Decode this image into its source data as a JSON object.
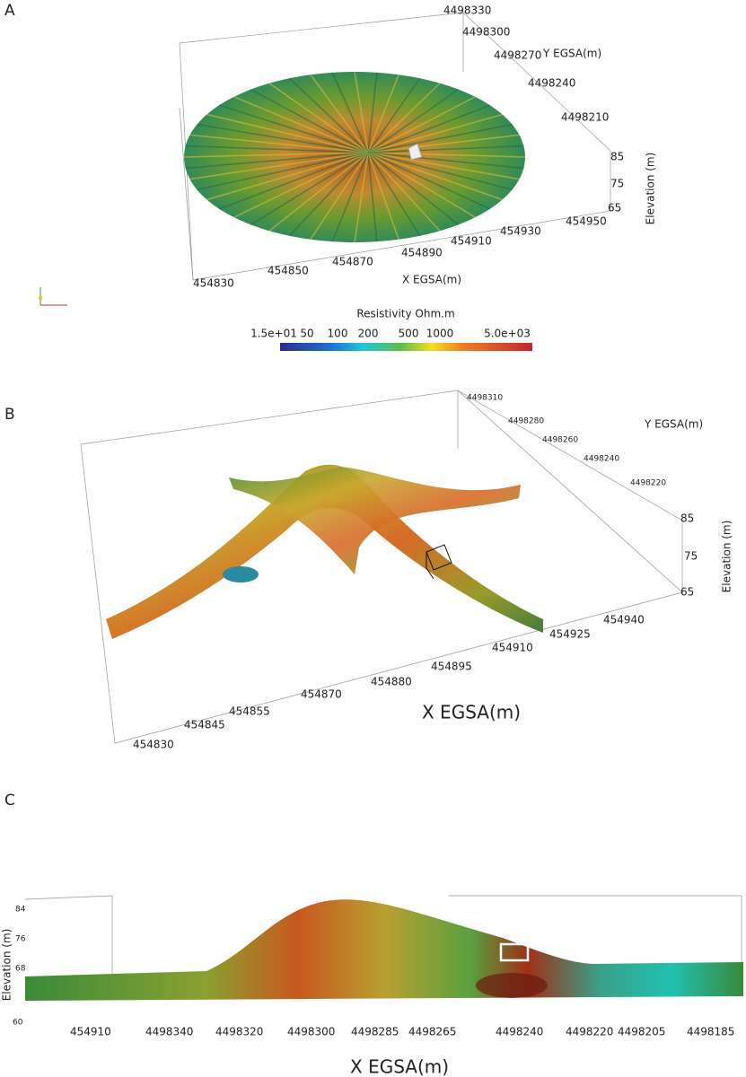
{
  "panels": [
    {
      "label": "A",
      "y_ticks": [
        "4498330",
        "4498300",
        "4498270",
        "4498240",
        "4498210"
      ],
      "y_axis_label": "Y EGSA(m)",
      "x_ticks": [
        "454830",
        "454850",
        "454870",
        "454890",
        "454910",
        "454930",
        "454950"
      ],
      "x_axis_label": "X EGSA(m)",
      "z_ticks": [
        "85",
        "75",
        "65"
      ],
      "z_axis_label": "Elevation (m)",
      "colorbar": {
        "title": "Resistivity Ohm.m",
        "ticks": [
          "1.5e+01",
          "50",
          "100",
          "200",
          "500",
          "1000",
          "5.0e+03"
        ]
      }
    },
    {
      "label": "B",
      "y_ticks": [
        "4498310",
        "4498280",
        "4498260",
        "4498240",
        "4498220"
      ],
      "y_axis_label": "Y EGSA(m)",
      "x_ticks": [
        "454830",
        "454845",
        "454855",
        "454870",
        "454880",
        "454895",
        "454910",
        "454925",
        "454940"
      ],
      "x_axis_label": "X EGSA(m)",
      "z_ticks": [
        "85",
        "75",
        "65"
      ],
      "z_axis_label": "Elevation (m)"
    },
    {
      "label": "C",
      "y_ticks": [
        "84",
        "76",
        "68",
        "60"
      ],
      "y_axis_label": "Elevation (m)",
      "x_ticks": [
        "454910",
        "4498340",
        "4498320",
        "4498300",
        "4498285",
        "4498265",
        "4498240",
        "4498220",
        "4498205",
        "4498185"
      ],
      "x_axis_label": "X EGSA(m)"
    }
  ]
}
